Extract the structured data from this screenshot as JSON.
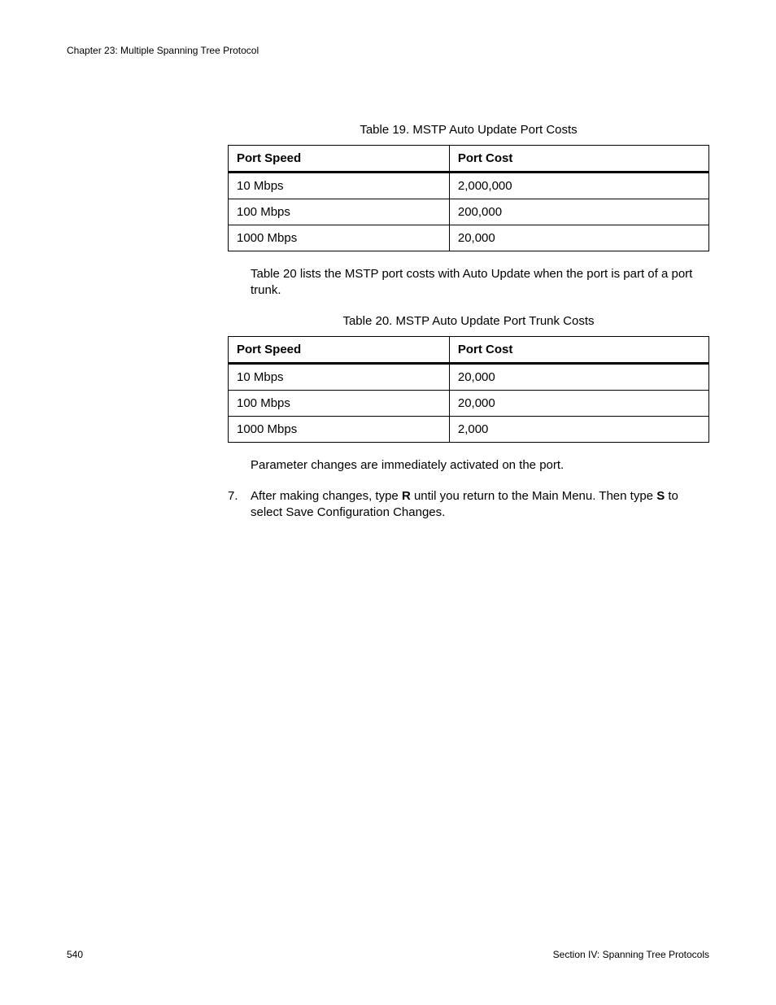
{
  "header": {
    "chapter": "Chapter 23: Multiple Spanning Tree Protocol"
  },
  "table19": {
    "caption": "Table 19. MSTP Auto Update Port Costs",
    "columns": [
      "Port Speed",
      "Port Cost"
    ],
    "rows": [
      [
        "10 Mbps",
        "2,000,000"
      ],
      [
        "100 Mbps",
        "200,000"
      ],
      [
        "1000 Mbps",
        "20,000"
      ]
    ]
  },
  "para1": "Table 20 lists the MSTP port costs with Auto Update when the port is part of a port trunk.",
  "table20": {
    "caption": "Table 20. MSTP Auto Update Port Trunk Costs",
    "columns": [
      "Port Speed",
      "Port Cost"
    ],
    "rows": [
      [
        "10 Mbps",
        "20,000"
      ],
      [
        "100 Mbps",
        "20,000"
      ],
      [
        "1000 Mbps",
        "2,000"
      ]
    ]
  },
  "para2": "Parameter changes are immediately activated on the port.",
  "step7": {
    "num": "7.",
    "pre": "After making changes, type ",
    "bold1": "R",
    "mid": " until you return to the Main Menu. Then type ",
    "bold2": "S",
    "post": " to select Save Configuration Changes."
  },
  "footer": {
    "page": "540",
    "section": "Section IV: Spanning Tree Protocols"
  },
  "styles": {
    "body_fontsize": 15,
    "header_fontsize": 12,
    "footer_fontsize": 12,
    "text_color": "#000000",
    "background_color": "#ffffff",
    "border_color": "#000000",
    "header_border_bottom_width": 3,
    "cell_border_width": 1.5,
    "col_widths_pct": [
      46,
      54
    ]
  }
}
